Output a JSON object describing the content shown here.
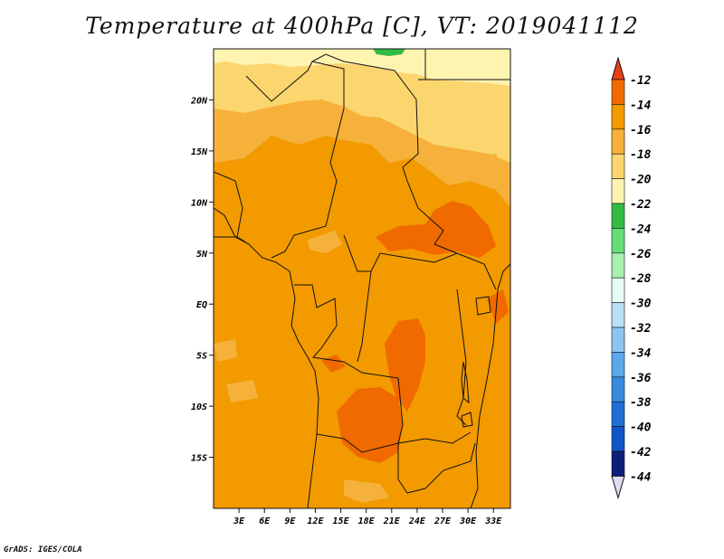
{
  "title": "Temperature at 400hPa [C], VT: 2019041112",
  "credit": "GrADS: IGES/COLA",
  "map": {
    "lon_range": [
      0,
      35
    ],
    "lat_range": [
      -20,
      25
    ],
    "lat_labels": [
      "20N",
      "15N",
      "10N",
      "5N",
      "EQ",
      "5S",
      "10S",
      "15S"
    ],
    "lat_values": [
      20,
      15,
      10,
      5,
      0,
      -5,
      -10,
      -15
    ],
    "lon_labels": [
      "3E",
      "6E",
      "9E",
      "12E",
      "15E",
      "18E",
      "21E",
      "24E",
      "27E",
      "30E",
      "33E"
    ],
    "lon_values": [
      3,
      6,
      9,
      12,
      15,
      18,
      21,
      24,
      27,
      30,
      33
    ]
  },
  "colorbar": {
    "labels": [
      "-12",
      "-14",
      "-16",
      "-18",
      "-20",
      "-22",
      "-24",
      "-26",
      "-28",
      "-30",
      "-32",
      "-34",
      "-36",
      "-38",
      "-40",
      "-42",
      "-44"
    ],
    "colors": [
      "#e8401a",
      "#f06a00",
      "#f29a00",
      "#f5b13a",
      "#fbd56e",
      "#fff3b0",
      "#33bb44",
      "#66dd77",
      "#a9efb0",
      "#e5fbf6",
      "#b9e0f7",
      "#8cc4f0",
      "#5ba8ea",
      "#3a8be0",
      "#1e6fd6",
      "#1055c7",
      "#0b1f78",
      "#dcdcf5"
    ]
  }
}
